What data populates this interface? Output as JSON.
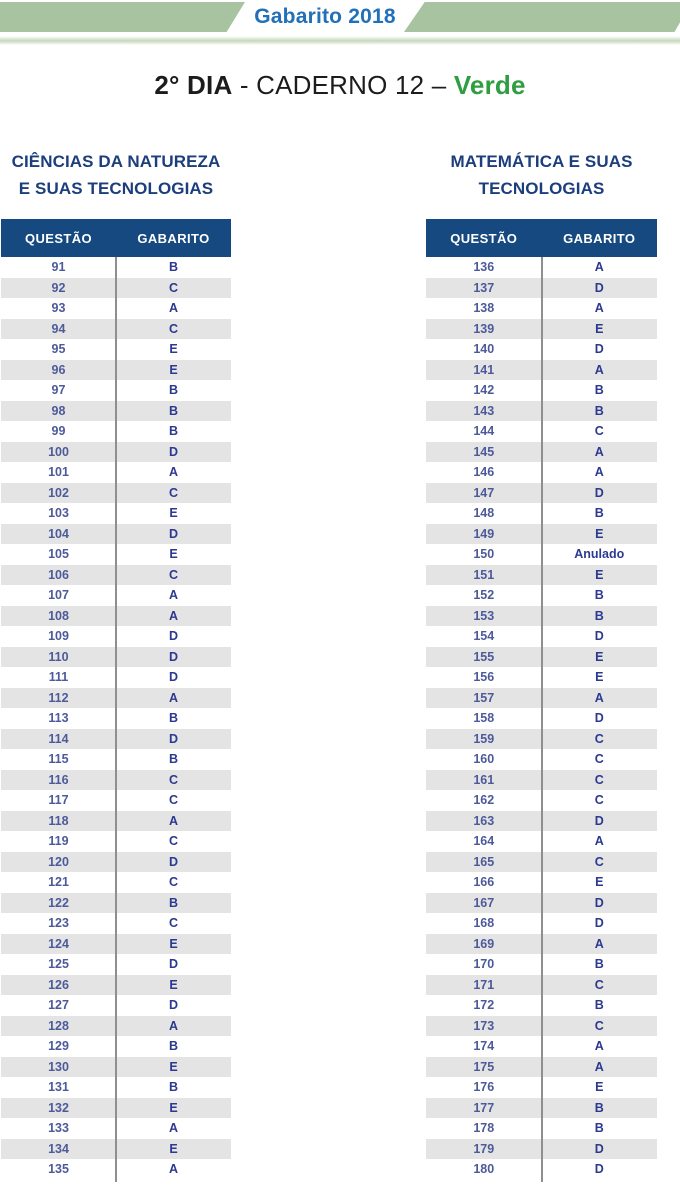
{
  "banner": {
    "title": "Gabarito 2018"
  },
  "page_title": {
    "day": "2° DIA",
    "sep1": " - ",
    "booklet": "CADERNO 12",
    "sep2": " – ",
    "color_label": "Verde"
  },
  "column_headers": {
    "question": "QUESTÃO",
    "answer": "GABARITO"
  },
  "sections": [
    {
      "title_line1": "CIÊNCIAS DA NATUREZA",
      "title_line2": "E SUAS TECNOLOGIAS",
      "rows": [
        {
          "q": "91",
          "a": "B"
        },
        {
          "q": "92",
          "a": "C"
        },
        {
          "q": "93",
          "a": "A"
        },
        {
          "q": "94",
          "a": "C"
        },
        {
          "q": "95",
          "a": "E"
        },
        {
          "q": "96",
          "a": "E"
        },
        {
          "q": "97",
          "a": "B"
        },
        {
          "q": "98",
          "a": "B"
        },
        {
          "q": "99",
          "a": "B"
        },
        {
          "q": "100",
          "a": "D"
        },
        {
          "q": "101",
          "a": "A"
        },
        {
          "q": "102",
          "a": "C"
        },
        {
          "q": "103",
          "a": "E"
        },
        {
          "q": "104",
          "a": "D"
        },
        {
          "q": "105",
          "a": "E"
        },
        {
          "q": "106",
          "a": "C"
        },
        {
          "q": "107",
          "a": "A"
        },
        {
          "q": "108",
          "a": "A"
        },
        {
          "q": "109",
          "a": "D"
        },
        {
          "q": "110",
          "a": "D"
        },
        {
          "q": "111",
          "a": "D"
        },
        {
          "q": "112",
          "a": "A"
        },
        {
          "q": "113",
          "a": "B"
        },
        {
          "q": "114",
          "a": "D"
        },
        {
          "q": "115",
          "a": "B"
        },
        {
          "q": "116",
          "a": "C"
        },
        {
          "q": "117",
          "a": "C"
        },
        {
          "q": "118",
          "a": "A"
        },
        {
          "q": "119",
          "a": "C"
        },
        {
          "q": "120",
          "a": "D"
        },
        {
          "q": "121",
          "a": "C"
        },
        {
          "q": "122",
          "a": "B"
        },
        {
          "q": "123",
          "a": "C"
        },
        {
          "q": "124",
          "a": "E"
        },
        {
          "q": "125",
          "a": "D"
        },
        {
          "q": "126",
          "a": "E"
        },
        {
          "q": "127",
          "a": "D"
        },
        {
          "q": "128",
          "a": "A"
        },
        {
          "q": "129",
          "a": "B"
        },
        {
          "q": "130",
          "a": "E"
        },
        {
          "q": "131",
          "a": "B"
        },
        {
          "q": "132",
          "a": "E"
        },
        {
          "q": "133",
          "a": "A"
        },
        {
          "q": "134",
          "a": "E"
        },
        {
          "q": "135",
          "a": "A"
        }
      ]
    },
    {
      "title_line1": "MATEMÁTICA E SUAS",
      "title_line2": "TECNOLOGIAS",
      "rows": [
        {
          "q": "136",
          "a": "A"
        },
        {
          "q": "137",
          "a": "D"
        },
        {
          "q": "138",
          "a": "A"
        },
        {
          "q": "139",
          "a": "E"
        },
        {
          "q": "140",
          "a": "D"
        },
        {
          "q": "141",
          "a": "A"
        },
        {
          "q": "142",
          "a": "B"
        },
        {
          "q": "143",
          "a": "B"
        },
        {
          "q": "144",
          "a": "C"
        },
        {
          "q": "145",
          "a": "A"
        },
        {
          "q": "146",
          "a": "A"
        },
        {
          "q": "147",
          "a": "D"
        },
        {
          "q": "148",
          "a": "B"
        },
        {
          "q": "149",
          "a": "E"
        },
        {
          "q": "150",
          "a": "Anulado"
        },
        {
          "q": "151",
          "a": "E"
        },
        {
          "q": "152",
          "a": "B"
        },
        {
          "q": "153",
          "a": "B"
        },
        {
          "q": "154",
          "a": "D"
        },
        {
          "q": "155",
          "a": "E"
        },
        {
          "q": "156",
          "a": "E"
        },
        {
          "q": "157",
          "a": "A"
        },
        {
          "q": "158",
          "a": "D"
        },
        {
          "q": "159",
          "a": "C"
        },
        {
          "q": "160",
          "a": "C"
        },
        {
          "q": "161",
          "a": "C"
        },
        {
          "q": "162",
          "a": "C"
        },
        {
          "q": "163",
          "a": "D"
        },
        {
          "q": "164",
          "a": "A"
        },
        {
          "q": "165",
          "a": "C"
        },
        {
          "q": "166",
          "a": "E"
        },
        {
          "q": "167",
          "a": "D"
        },
        {
          "q": "168",
          "a": "D"
        },
        {
          "q": "169",
          "a": "A"
        },
        {
          "q": "170",
          "a": "B"
        },
        {
          "q": "171",
          "a": "C"
        },
        {
          "q": "172",
          "a": "B"
        },
        {
          "q": "173",
          "a": "C"
        },
        {
          "q": "174",
          "a": "A"
        },
        {
          "q": "175",
          "a": "A"
        },
        {
          "q": "176",
          "a": "E"
        },
        {
          "q": "177",
          "a": "B"
        },
        {
          "q": "178",
          "a": "B"
        },
        {
          "q": "179",
          "a": "D"
        },
        {
          "q": "180",
          "a": "D"
        }
      ]
    }
  ],
  "colors": {
    "banner_green": "#a8c3a0",
    "banner_title_blue": "#2170b8",
    "verde_green": "#2e9e41",
    "section_title_navy": "#1c3e7c",
    "header_bar_navy": "#15497f",
    "question_text": "#4d5a9a",
    "answer_text": "#2b3990",
    "row_alt_gray": "#e4e4e4"
  }
}
